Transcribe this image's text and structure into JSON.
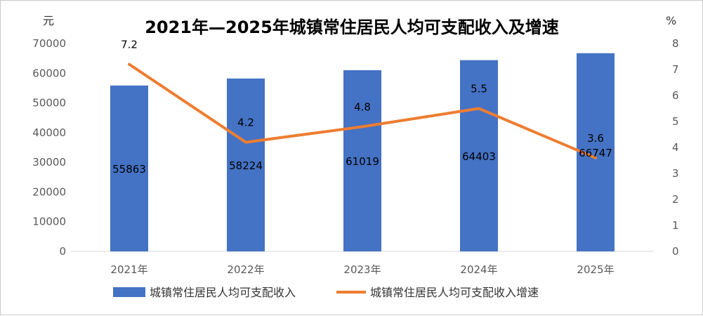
{
  "chart_data": {
    "type": "bar",
    "title": "2021年—2025年城镇常住居民人均可支配收入及增速",
    "y_unit_left": "元",
    "y_unit_right": "%",
    "categories": [
      "2021年",
      "2022年",
      "2023年",
      "2024年",
      "2025年"
    ],
    "series": [
      {
        "name": "城镇常住居民人均可支配收入",
        "type": "bar",
        "axis": "left",
        "color": "#4472c4",
        "values": [
          55863,
          58224,
          61019,
          64403,
          66747
        ]
      },
      {
        "name": "城镇常住居民人均可支配收入增速",
        "type": "line",
        "axis": "right",
        "color": "#ed7d31",
        "values": [
          7.2,
          4.2,
          4.8,
          5.5,
          3.6
        ]
      }
    ],
    "ylim_left": [
      0,
      70000
    ],
    "yticks_left": [
      "0",
      "10000",
      "20000",
      "30000",
      "40000",
      "50000",
      "60000",
      "70000"
    ],
    "ylim_right": [
      0,
      8
    ],
    "yticks_right": [
      "0",
      "1",
      "2",
      "3",
      "4",
      "5",
      "6",
      "7",
      "8"
    ],
    "grid": false,
    "legend_position": "bottom"
  }
}
